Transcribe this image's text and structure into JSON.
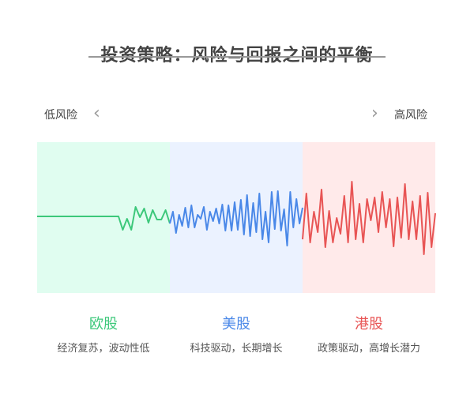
{
  "title": "投资策略：风险与回报之间的平衡",
  "scale": {
    "low": "低风险",
    "high": "高风险",
    "prev_icon": "chevron-left-icon",
    "next_icon": "chevron-right-icon"
  },
  "chart_data": {
    "type": "line",
    "baseline": 0,
    "ylim": [
      -50,
      50
    ],
    "series": [
      {
        "name": "欧股",
        "description": "经济复苏，波动性低",
        "color": "#3cc87a",
        "background": "#e0fdf0",
        "values": [
          0,
          0,
          0,
          0,
          0,
          0,
          0,
          0,
          0,
          0,
          0,
          0,
          0,
          0,
          0,
          0,
          0,
          0,
          0,
          0,
          -17,
          -3,
          -17,
          12,
          -1,
          10,
          -8,
          8,
          -4,
          -4,
          8,
          -9
        ]
      },
      {
        "name": "美股",
        "description": "科技驱动，长期增长",
        "color": "#4a88e8",
        "background": "#ebf2ff",
        "values": [
          -9,
          6,
          -21,
          2,
          -12,
          11,
          -14,
          14,
          -14,
          2,
          -3,
          12,
          -17,
          6,
          -6,
          10,
          -9,
          15,
          -18,
          14,
          -18,
          18,
          -17,
          21,
          -23,
          27,
          -25,
          17,
          -20,
          29,
          -29,
          6,
          -33,
          31,
          -16,
          32,
          -18,
          9,
          -37,
          31,
          -14,
          22,
          -9,
          11
        ]
      },
      {
        "name": "港股",
        "description": "政策驱动，高增长潜力",
        "color": "#e85555",
        "background": "#ffeaea",
        "values": [
          -29,
          29,
          -33,
          6,
          -20,
          34,
          -39,
          7,
          -33,
          -2,
          -22,
          26,
          -33,
          44,
          -29,
          16,
          -33,
          22,
          -5,
          24,
          -20,
          31,
          -14,
          22,
          -38,
          24,
          -27,
          41,
          -29,
          19,
          -29,
          26,
          -48,
          30,
          -39,
          4
        ]
      }
    ]
  }
}
